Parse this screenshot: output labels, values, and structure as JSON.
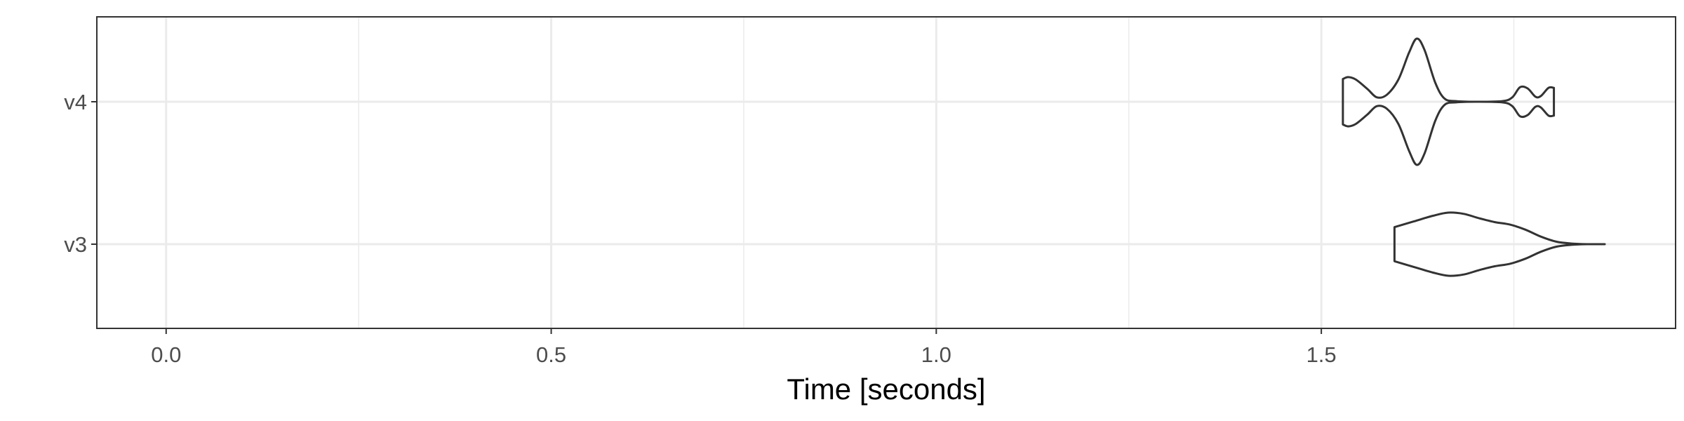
{
  "chart_data": {
    "type": "violin",
    "xlabel": "Time [seconds]",
    "ylabel": "",
    "xlim": [
      -0.09,
      1.96
    ],
    "x_ticks": [
      0.0,
      0.5,
      1.0,
      1.5
    ],
    "x_tick_labels": [
      "0.0",
      "0.5",
      "1.0",
      "1.5"
    ],
    "x_minor_ticks": [
      0.25,
      0.75,
      1.25,
      1.75
    ],
    "categories": [
      "v3",
      "v4"
    ],
    "grid": true,
    "colors": {
      "outline": "#333333",
      "grid": "#ebebeb",
      "panel_border": "#333333"
    },
    "series": [
      {
        "category": "v3",
        "min": 1.595,
        "max": 1.868,
        "density": [
          [
            1.595,
            0.27
          ],
          [
            1.62,
            0.36
          ],
          [
            1.645,
            0.45
          ],
          [
            1.665,
            0.5
          ],
          [
            1.685,
            0.48
          ],
          [
            1.705,
            0.41
          ],
          [
            1.725,
            0.35
          ],
          [
            1.745,
            0.31
          ],
          [
            1.765,
            0.23
          ],
          [
            1.785,
            0.12
          ],
          [
            1.805,
            0.04
          ],
          [
            1.825,
            0.01
          ],
          [
            1.845,
            0.0
          ],
          [
            1.868,
            -0.01
          ]
        ]
      },
      {
        "category": "v4",
        "min": 1.528,
        "max": 1.802,
        "density": [
          [
            1.528,
            0.36
          ],
          [
            1.535,
            0.39
          ],
          [
            1.545,
            0.35
          ],
          [
            1.56,
            0.2
          ],
          [
            1.572,
            0.07
          ],
          [
            1.585,
            0.11
          ],
          [
            1.6,
            0.35
          ],
          [
            1.614,
            0.78
          ],
          [
            1.624,
            1.0
          ],
          [
            1.634,
            0.82
          ],
          [
            1.648,
            0.3
          ],
          [
            1.66,
            0.05
          ],
          [
            1.675,
            0.01
          ],
          [
            1.7,
            0.0
          ],
          [
            1.735,
            0.01
          ],
          [
            1.748,
            0.07
          ],
          [
            1.758,
            0.23
          ],
          [
            1.768,
            0.21
          ],
          [
            1.778,
            0.08
          ],
          [
            1.785,
            0.09
          ],
          [
            1.795,
            0.22
          ],
          [
            1.802,
            0.22
          ]
        ]
      }
    ]
  }
}
